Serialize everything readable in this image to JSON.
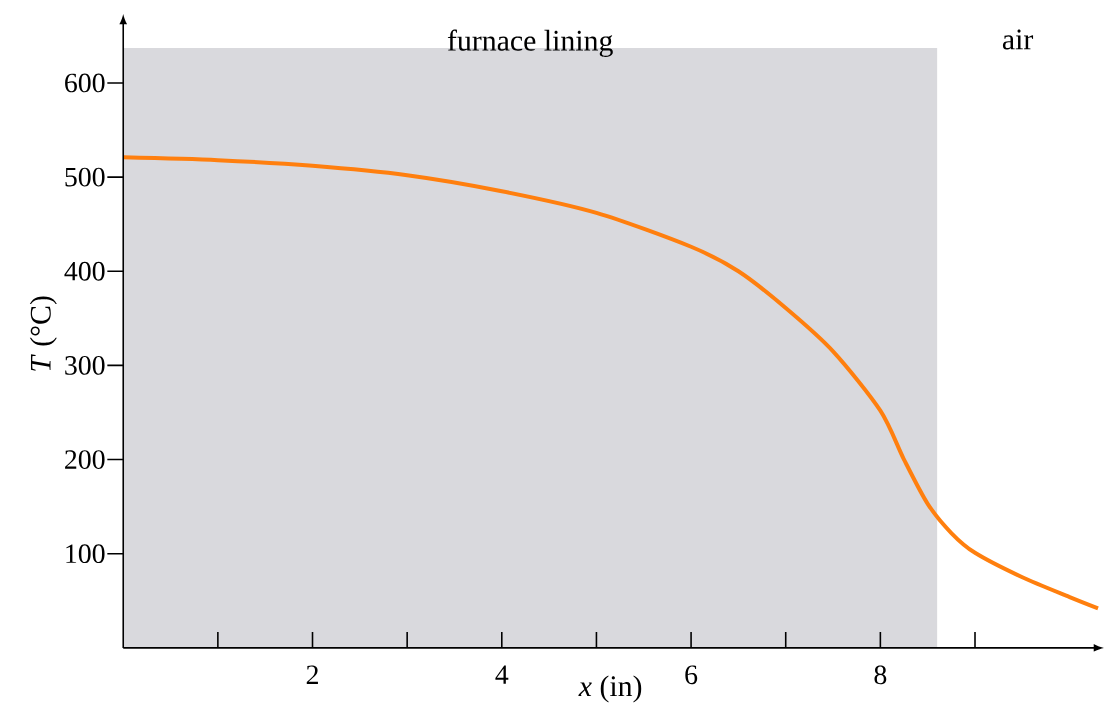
{
  "chart_data": {
    "type": "line",
    "xlabel": "*x* (in)",
    "ylabel": "*T* (°C)",
    "x": [
      0,
      1,
      2,
      3,
      4,
      5,
      6,
      6.5,
      7,
      7.5,
      8,
      8.25,
      8.5,
      8.75,
      9,
      9.5,
      10,
      10.3
    ],
    "series": [
      {
        "color": "#ff7f0e",
        "values": [
          521,
          518,
          512,
          502,
          485,
          462,
          426,
          400,
          361,
          315,
          252,
          200,
          153,
          122,
          101,
          75,
          54,
          42
        ]
      }
    ],
    "xlim": [
      0,
      10.3
    ],
    "ylim": [
      0,
      667
    ],
    "xticks": [
      {
        "value": 1,
        "label": null
      },
      2,
      {
        "value": 3,
        "label": null
      },
      4,
      {
        "value": 5,
        "label": null
      },
      6,
      {
        "value": 7,
        "label": null
      },
      8,
      {
        "value": 9,
        "label": null
      }
    ],
    "yticks": [
      100,
      200,
      300,
      400,
      500,
      600
    ],
    "bands": [
      {
        "axis": "x",
        "from": 0,
        "to": 8.6,
        "label": "furnace lining",
        "color": "#d9d9dd"
      }
    ],
    "annotations": [
      "air"
    ],
    "grid": false,
    "marker": "none",
    "line_style": "solid"
  }
}
